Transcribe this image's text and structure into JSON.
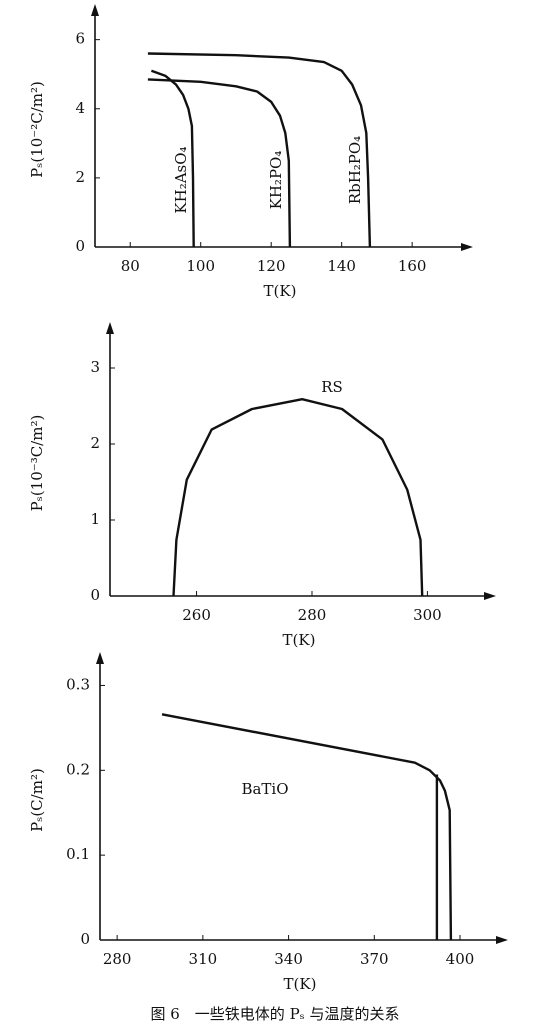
{
  "chart_data": [
    {
      "type": "line",
      "x_label": "T(K)",
      "y_label": "Pₛ(10⁻²C/m²)",
      "xlim": [
        70,
        175
      ],
      "ylim": [
        0,
        6.8
      ],
      "xticks": [
        80,
        100,
        120,
        140,
        160
      ],
      "yticks": [
        0,
        2,
        4,
        6
      ],
      "series": [
        {
          "name": "KH₂AsO₄",
          "color": "#111111",
          "x": [
            86,
            90,
            93,
            95,
            96.5,
            97.5,
            97.8,
            98
          ],
          "values": [
            5.1,
            4.95,
            4.7,
            4.4,
            4.0,
            3.5,
            2,
            0
          ]
        },
        {
          "name": "KH₂PO₄",
          "color": "#111111",
          "x": [
            85,
            100,
            110,
            116,
            120,
            122.5,
            124,
            125,
            125.3
          ],
          "values": [
            4.85,
            4.78,
            4.65,
            4.5,
            4.2,
            3.8,
            3.3,
            2.5,
            0
          ]
        },
        {
          "name": "RbH₂PO₄",
          "color": "#111111",
          "x": [
            85,
            110,
            125,
            135,
            140,
            143,
            145.5,
            147,
            147.5,
            148
          ],
          "values": [
            5.6,
            5.55,
            5.48,
            5.35,
            5.1,
            4.7,
            4.1,
            3.3,
            2,
            0
          ]
        }
      ]
    },
    {
      "type": "line",
      "x_label": "T(K)",
      "y_label": "Pₛ(10⁻³C/m²)",
      "xlim": [
        245,
        310.5
      ],
      "ylim": [
        0,
        3.5
      ],
      "xticks": [
        260,
        280,
        300
      ],
      "yticks": [
        0,
        1,
        2,
        3
      ],
      "series": [
        {
          "name": "RS",
          "color": "#111111",
          "x": [
            256,
            256.5,
            258.3,
            262.6,
            269.6,
            278.3,
            285.2,
            292.2,
            296.5,
            298.8,
            299.1
          ],
          "values": [
            0,
            0.74,
            1.53,
            2.19,
            2.46,
            2.59,
            2.46,
            2.06,
            1.4,
            0.74,
            0
          ]
        }
      ]
    },
    {
      "type": "line",
      "x_label": "T(K)",
      "y_label": "Pₛ(C/m²)",
      "xlim": [
        274,
        414
      ],
      "ylim": [
        0,
        0.33
      ],
      "xticks": [
        280,
        310,
        340,
        370,
        400
      ],
      "yticks": [
        0,
        0.1,
        0.2,
        0.3
      ],
      "series": [
        {
          "name": "BaTiO",
          "color": "#111111",
          "x": [
            295.7,
            384.2,
            389.4,
            393,
            394.7,
            396.4,
            396.8,
            392,
            391.9,
            391.9
          ],
          "values": [
            0.266,
            0.209,
            0.2,
            0.188,
            0.176,
            0.153,
            0,
            null,
            0.195,
            0
          ]
        }
      ]
    }
  ],
  "caption": "图 6　一些铁电体的 Pₛ 与温度的关系"
}
